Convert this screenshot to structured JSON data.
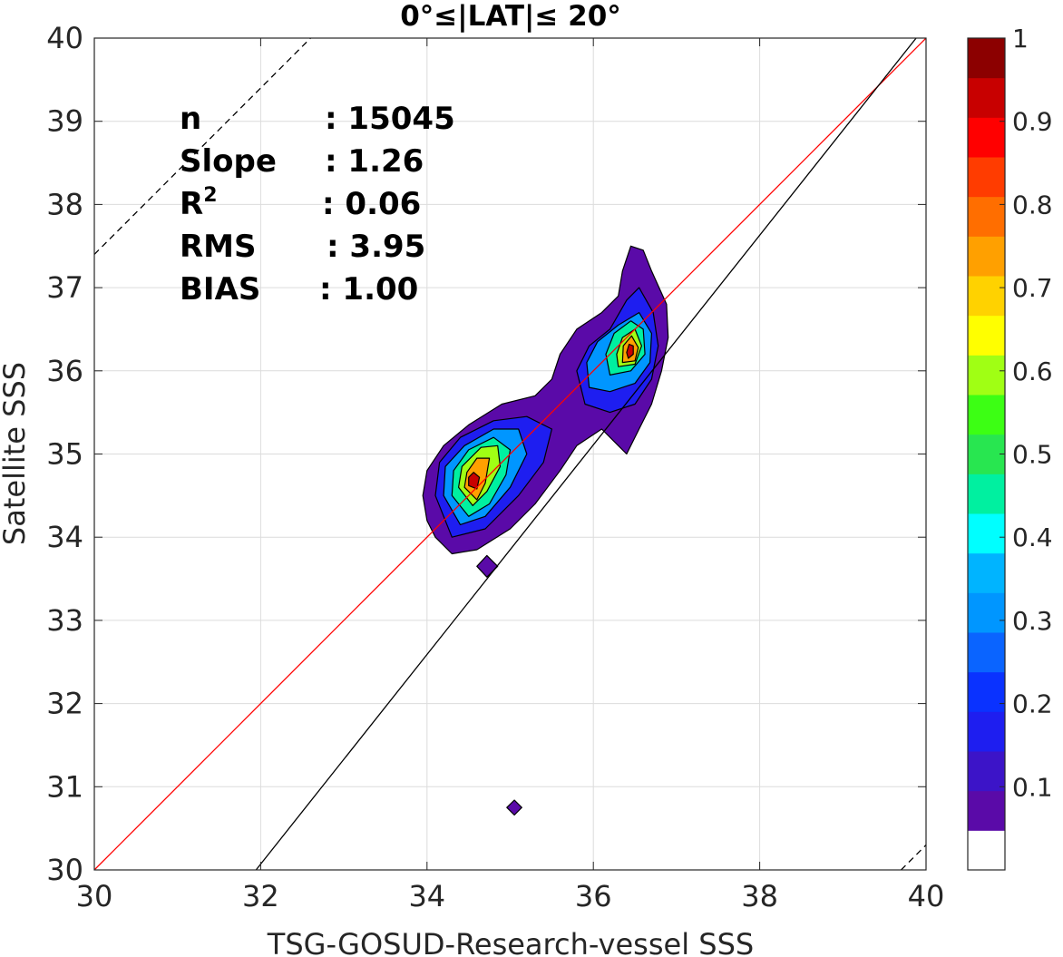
{
  "chart_data": {
    "type": "contour",
    "title": "0°≤|LAT|≤ 20°",
    "xlabel": "TSG-GOSUD-Research-vessel SSS",
    "ylabel": "Satellite SSS",
    "xlim": [
      30,
      40
    ],
    "ylim": [
      30,
      40
    ],
    "x_ticks": [
      "30",
      "32",
      "34",
      "36",
      "38",
      "40"
    ],
    "y_ticks": [
      "30",
      "31",
      "32",
      "33",
      "34",
      "35",
      "36",
      "37",
      "38",
      "39",
      "40"
    ],
    "grid": true,
    "stats": [
      {
        "label": "n",
        "sup": "",
        "value": ": 15045"
      },
      {
        "label": "Slope",
        "sup": "",
        "value": ": 1.26"
      },
      {
        "label": "R",
        "sup": "2",
        "value": ": 0.06"
      },
      {
        "label": "RMS",
        "sup": "",
        "value": ": 3.95"
      },
      {
        "label": "BIAS",
        "sup": "",
        "value": ": 1.00"
      }
    ],
    "lines": [
      {
        "name": "one-to-one",
        "color": "#ff0000",
        "slope": 1,
        "intercept": 0
      },
      {
        "name": "regression",
        "color": "#000000",
        "slope": 1.26,
        "intercept": -10.25
      },
      {
        "name": "upper-dashed",
        "color": "#000000",
        "dashed": true,
        "slope": 1,
        "intercept": 7.4
      },
      {
        "name": "lower-dashed",
        "color": "#000000",
        "dashed": true,
        "slope": 1,
        "intercept": -9.7
      }
    ],
    "colorbar": {
      "ticks": [
        "0.1",
        "0.2",
        "0.3",
        "0.4",
        "0.5",
        "0.6",
        "0.7",
        "0.8",
        "0.9",
        "1"
      ],
      "range": [
        0,
        1
      ],
      "colors": [
        "#ffffff",
        "#5a0aa8",
        "#3c14c8",
        "#1e1ef0",
        "#0a32ff",
        "#0a64ff",
        "#0096ff",
        "#00b4ff",
        "#00ffff",
        "#00f0a0",
        "#28e650",
        "#3cff14",
        "#a0ff14",
        "#ffff00",
        "#ffd200",
        "#ffa000",
        "#ff6e00",
        "#ff3c00",
        "#ff0000",
        "#c80000",
        "#8c0000"
      ]
    },
    "contour_regions": [
      {
        "name": "level-0.05-main",
        "level": 0.05,
        "points": [
          [
            33.95,
            34.5
          ],
          [
            34.0,
            34.2
          ],
          [
            34.1,
            34.0
          ],
          [
            34.3,
            33.8
          ],
          [
            34.6,
            33.85
          ],
          [
            35.0,
            34.1
          ],
          [
            35.3,
            34.4
          ],
          [
            35.6,
            34.8
          ],
          [
            35.8,
            35.1
          ],
          [
            36.1,
            35.3
          ],
          [
            36.3,
            35.1
          ],
          [
            36.4,
            35.0
          ],
          [
            36.55,
            35.3
          ],
          [
            36.7,
            35.6
          ],
          [
            36.82,
            36.0
          ],
          [
            36.9,
            36.4
          ],
          [
            36.88,
            36.8
          ],
          [
            36.7,
            37.2
          ],
          [
            36.6,
            37.45
          ],
          [
            36.45,
            37.5
          ],
          [
            36.35,
            37.2
          ],
          [
            36.3,
            36.9
          ],
          [
            36.1,
            36.7
          ],
          [
            35.8,
            36.5
          ],
          [
            35.6,
            36.2
          ],
          [
            35.5,
            35.9
          ],
          [
            35.3,
            35.7
          ],
          [
            34.9,
            35.6
          ],
          [
            34.5,
            35.35
          ],
          [
            34.2,
            35.1
          ],
          [
            34.0,
            34.8
          ]
        ]
      },
      {
        "name": "level-0.05-island-a",
        "level": 0.05,
        "points": [
          [
            34.6,
            33.65
          ],
          [
            34.72,
            33.52
          ],
          [
            34.85,
            33.65
          ],
          [
            34.72,
            33.78
          ]
        ]
      },
      {
        "name": "level-0.05-island-b",
        "level": 0.05,
        "points": [
          [
            34.96,
            30.75
          ],
          [
            35.05,
            30.66
          ],
          [
            35.14,
            30.75
          ],
          [
            35.05,
            30.84
          ]
        ]
      },
      {
        "name": "level-0.15-upper",
        "level": 0.15,
        "points": [
          [
            35.9,
            35.6
          ],
          [
            36.2,
            35.5
          ],
          [
            36.5,
            35.6
          ],
          [
            36.7,
            35.9
          ],
          [
            36.78,
            36.3
          ],
          [
            36.72,
            36.7
          ],
          [
            36.55,
            37.0
          ],
          [
            36.4,
            36.85
          ],
          [
            36.2,
            36.5
          ],
          [
            35.95,
            36.3
          ],
          [
            35.8,
            36.0
          ]
        ]
      },
      {
        "name": "level-0.15-lower",
        "level": 0.15,
        "points": [
          [
            34.1,
            34.5
          ],
          [
            34.3,
            34.0
          ],
          [
            34.7,
            34.1
          ],
          [
            35.1,
            34.5
          ],
          [
            35.4,
            34.9
          ],
          [
            35.5,
            35.3
          ],
          [
            35.2,
            35.45
          ],
          [
            34.8,
            35.4
          ],
          [
            34.4,
            35.2
          ],
          [
            34.15,
            34.9
          ]
        ]
      },
      {
        "name": "level-0.3-upper",
        "level": 0.3,
        "points": [
          [
            35.95,
            35.8
          ],
          [
            36.2,
            35.75
          ],
          [
            36.5,
            35.85
          ],
          [
            36.68,
            36.1
          ],
          [
            36.7,
            36.45
          ],
          [
            36.55,
            36.7
          ],
          [
            36.3,
            36.55
          ],
          [
            36.05,
            36.35
          ],
          [
            35.92,
            36.1
          ]
        ]
      },
      {
        "name": "level-0.3-lower",
        "level": 0.3,
        "points": [
          [
            34.2,
            34.5
          ],
          [
            34.4,
            34.15
          ],
          [
            34.7,
            34.25
          ],
          [
            35.0,
            34.6
          ],
          [
            35.2,
            35.0
          ],
          [
            35.1,
            35.3
          ],
          [
            34.8,
            35.3
          ],
          [
            34.45,
            35.1
          ],
          [
            34.22,
            34.85
          ]
        ]
      },
      {
        "name": "level-0.45-upper",
        "level": 0.45,
        "points": [
          [
            36.2,
            35.95
          ],
          [
            36.45,
            36.0
          ],
          [
            36.62,
            36.2
          ],
          [
            36.6,
            36.5
          ],
          [
            36.45,
            36.6
          ],
          [
            36.25,
            36.45
          ],
          [
            36.15,
            36.2
          ]
        ]
      },
      {
        "name": "level-0.45-lower",
        "level": 0.45,
        "points": [
          [
            34.3,
            34.5
          ],
          [
            34.5,
            34.25
          ],
          [
            34.75,
            34.4
          ],
          [
            34.95,
            34.75
          ],
          [
            35.0,
            35.05
          ],
          [
            34.8,
            35.2
          ],
          [
            34.5,
            35.05
          ],
          [
            34.32,
            34.8
          ]
        ]
      },
      {
        "name": "level-0.6-upper",
        "level": 0.6,
        "points": [
          [
            36.3,
            36.05
          ],
          [
            36.5,
            36.08
          ],
          [
            36.58,
            36.3
          ],
          [
            36.5,
            36.5
          ],
          [
            36.35,
            36.4
          ],
          [
            36.28,
            36.2
          ]
        ]
      },
      {
        "name": "level-0.6-lower",
        "level": 0.6,
        "points": [
          [
            34.38,
            34.6
          ],
          [
            34.55,
            34.38
          ],
          [
            34.72,
            34.55
          ],
          [
            34.88,
            34.85
          ],
          [
            34.85,
            35.1
          ],
          [
            34.65,
            35.08
          ],
          [
            34.42,
            34.85
          ]
        ]
      },
      {
        "name": "level-0.75-upper",
        "level": 0.75,
        "points": [
          [
            36.35,
            36.1
          ],
          [
            36.5,
            36.12
          ],
          [
            36.54,
            36.28
          ],
          [
            36.46,
            36.42
          ],
          [
            36.36,
            36.3
          ]
        ]
      },
      {
        "name": "level-0.75-lower",
        "level": 0.75,
        "points": [
          [
            34.45,
            34.6
          ],
          [
            34.6,
            34.45
          ],
          [
            34.7,
            34.65
          ],
          [
            34.75,
            34.95
          ],
          [
            34.6,
            34.95
          ],
          [
            34.48,
            34.78
          ]
        ]
      },
      {
        "name": "level-0.95-upper",
        "level": 0.95,
        "points": [
          [
            36.42,
            36.15
          ],
          [
            36.48,
            36.2
          ],
          [
            36.48,
            36.3
          ],
          [
            36.43,
            36.32
          ],
          [
            36.4,
            36.22
          ]
        ]
      },
      {
        "name": "level-0.95-lower",
        "level": 0.95,
        "points": [
          [
            34.5,
            34.62
          ],
          [
            34.6,
            34.58
          ],
          [
            34.63,
            34.72
          ],
          [
            34.56,
            34.78
          ],
          [
            34.5,
            34.72
          ]
        ]
      }
    ]
  }
}
